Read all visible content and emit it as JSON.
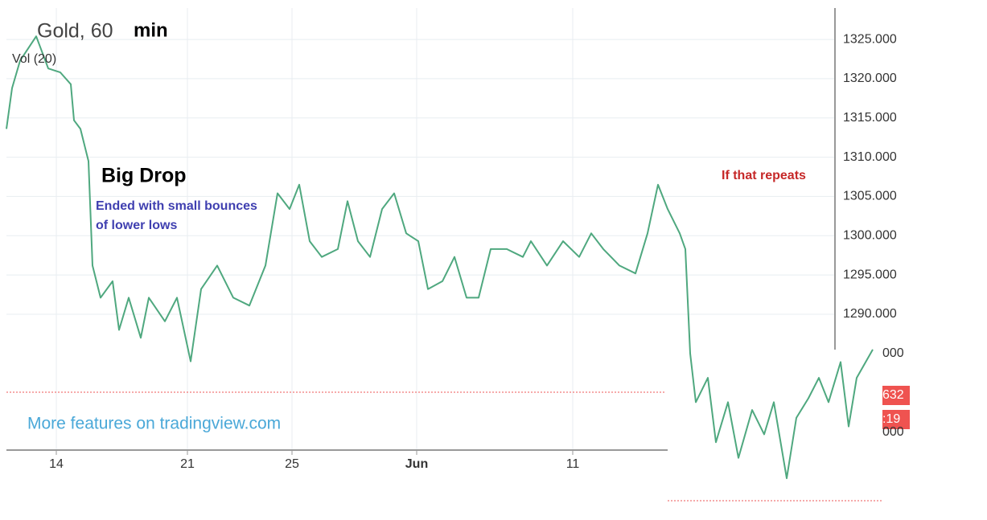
{
  "chart_data": {
    "type": "line",
    "title": "Gold, 60",
    "title_suffix": "min",
    "indicator_label": "Vol (20)",
    "annotations": [
      "Big Drop",
      "Ended with small bounces",
      "of lower lows",
      "If that repeats"
    ],
    "watermark": "More features on tradingview.com",
    "inset_labels": [
      "000",
      "000",
      "632",
      ":19"
    ],
    "grid": true,
    "xlim": [
      0,
      1030
    ],
    "xticks": [
      {
        "value": 62,
        "label": "14"
      },
      {
        "value": 225,
        "label": "21"
      },
      {
        "value": 355,
        "label": "25"
      },
      {
        "value": 510,
        "label": "Jun"
      },
      {
        "value": 704,
        "label": "11"
      }
    ],
    "ylim": [
      1268.6,
      1329
    ],
    "yticks": [
      {
        "value": 1325,
        "label": "1325.000"
      },
      {
        "value": 1320,
        "label": "1320.000"
      },
      {
        "value": 1315,
        "label": "1315.000"
      },
      {
        "value": 1310,
        "label": "1310.000"
      },
      {
        "value": 1305,
        "label": "1305.000"
      },
      {
        "value": 1300,
        "label": "1300.000"
      },
      {
        "value": 1295,
        "label": "1295.000"
      },
      {
        "value": 1290,
        "label": "1290.000"
      }
    ],
    "x": [
      0,
      7,
      17,
      37,
      52,
      67,
      80,
      84,
      92,
      102,
      107,
      117,
      132,
      140,
      152,
      167,
      177,
      197,
      212,
      229,
      242,
      262,
      282,
      302,
      322,
      337,
      352,
      364,
      377,
      392,
      412,
      424,
      437,
      452,
      467,
      482,
      497,
      512,
      524,
      542,
      557,
      572,
      587,
      602,
      622,
      642,
      652,
      672,
      692,
      712,
      727,
      742,
      762,
      782,
      797,
      810,
      822,
      837,
      844,
      850,
      857,
      872,
      882,
      897,
      910,
      927,
      942,
      954,
      970,
      982,
      997,
      1010,
      1022,
      1037,
      1047,
      1057,
      1077
    ],
    "series": [
      {
        "name": "Gold",
        "color": "#4fa87f",
        "values": [
          1313.6,
          1318.8,
          1322.3,
          1325.4,
          1321.3,
          1320.8,
          1319.3,
          1314.7,
          1313.6,
          1309.5,
          1296.2,
          1292.1,
          1294.2,
          1288.0,
          1292.1,
          1287.0,
          1292.1,
          1289.1,
          1292.1,
          1284.0,
          1293.2,
          1296.2,
          1292.1,
          1291.1,
          1296.2,
          1305.4,
          1303.4,
          1306.5,
          1299.3,
          1297.3,
          1298.3,
          1304.4,
          1299.3,
          1297.3,
          1303.4,
          1305.4,
          1300.3,
          1299.3,
          1293.2,
          1294.2,
          1297.3,
          1292.1,
          1292.1,
          1298.3,
          1298.3,
          1297.3,
          1299.3,
          1296.2,
          1299.3,
          1297.3,
          1300.3,
          1298.3,
          1296.2,
          1295.2,
          1300.3,
          1306.5,
          1303.4,
          1300.3,
          1298.3,
          1285.0,
          1278.8,
          1281.9,
          1273.7,
          1278.8,
          1271.7,
          1277.8,
          1274.7,
          1278.8,
          1269.1,
          1276.8,
          1279.3,
          1281.9,
          1278.8,
          1283.9,
          1275.7,
          1281.9,
          1285.5
        ]
      }
    ]
  }
}
